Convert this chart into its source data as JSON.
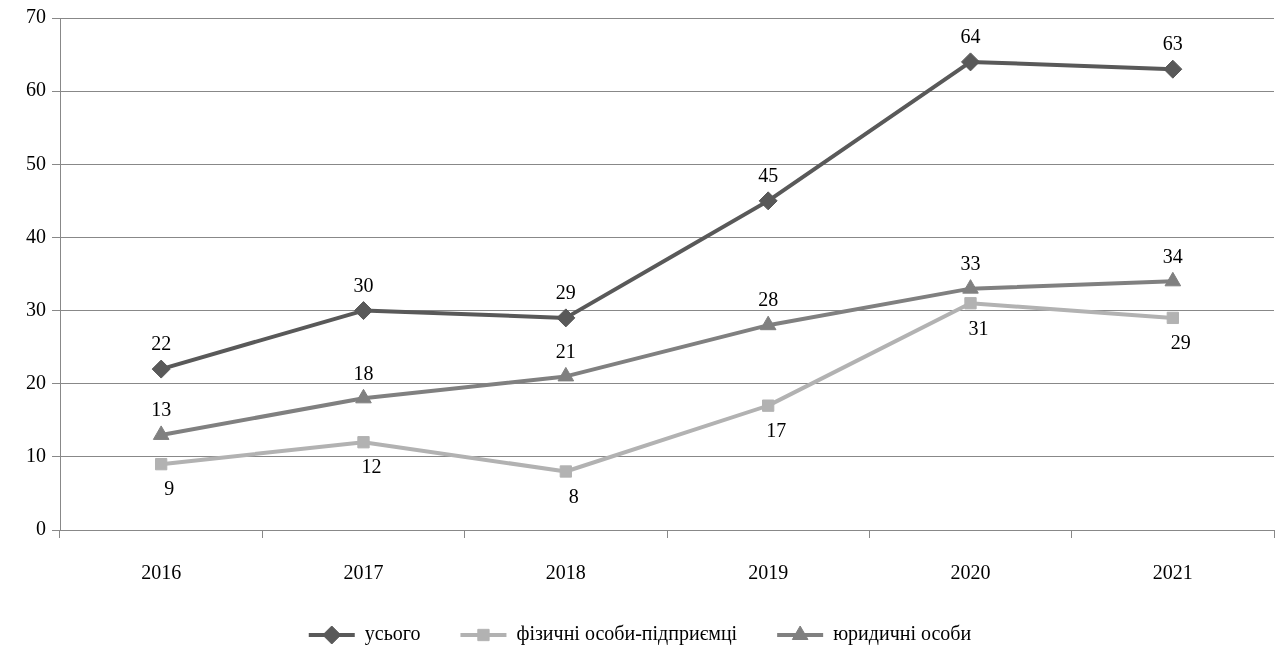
{
  "chart_data": {
    "type": "line",
    "categories": [
      "2016",
      "2017",
      "2018",
      "2019",
      "2020",
      "2021"
    ],
    "series": [
      {
        "name": "усього",
        "color": "#595959",
        "marker": "diamond",
        "values": [
          22,
          30,
          29,
          45,
          64,
          63
        ]
      },
      {
        "name": "фізичні особи-підприємці",
        "color": "#b2b2b2",
        "marker": "square",
        "values": [
          9,
          12,
          8,
          17,
          31,
          29
        ]
      },
      {
        "name": "юридичні особи",
        "color": "#808080",
        "marker": "triangle",
        "values": [
          13,
          18,
          21,
          28,
          33,
          34
        ]
      }
    ],
    "ylim": [
      0,
      70
    ],
    "yticks": [
      0,
      10,
      20,
      30,
      40,
      50,
      60,
      70
    ],
    "grid": "y",
    "legend": "bottom",
    "data_labels": true,
    "line_style": "solid"
  }
}
